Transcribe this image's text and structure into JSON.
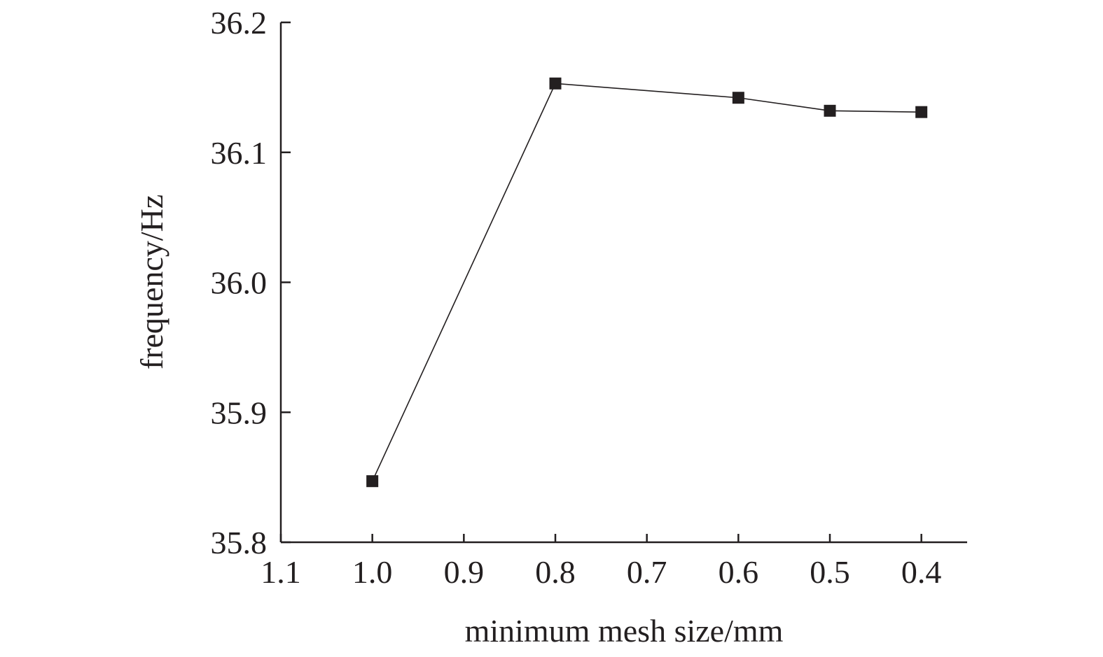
{
  "chart_data": {
    "type": "line",
    "xlabel": "minimum mesh size/mm",
    "ylabel": "frequency/Hz",
    "xlim": [
      1.1,
      0.35
    ],
    "ylim": [
      35.8,
      36.2
    ],
    "x_reversed": true,
    "x_ticks": [
      "1.1",
      "1.0",
      "0.9",
      "0.8",
      "0.7",
      "0.6",
      "0.5",
      "0.4"
    ],
    "y_ticks": [
      "35.8",
      "35.9",
      "36.0",
      "36.1",
      "36.2"
    ],
    "grid": false,
    "marker": "square",
    "series": [
      {
        "x": [
          1.0,
          0.8,
          0.6,
          0.5,
          0.4
        ],
        "values": [
          35.847,
          36.153,
          36.142,
          36.132,
          36.131
        ]
      }
    ]
  }
}
